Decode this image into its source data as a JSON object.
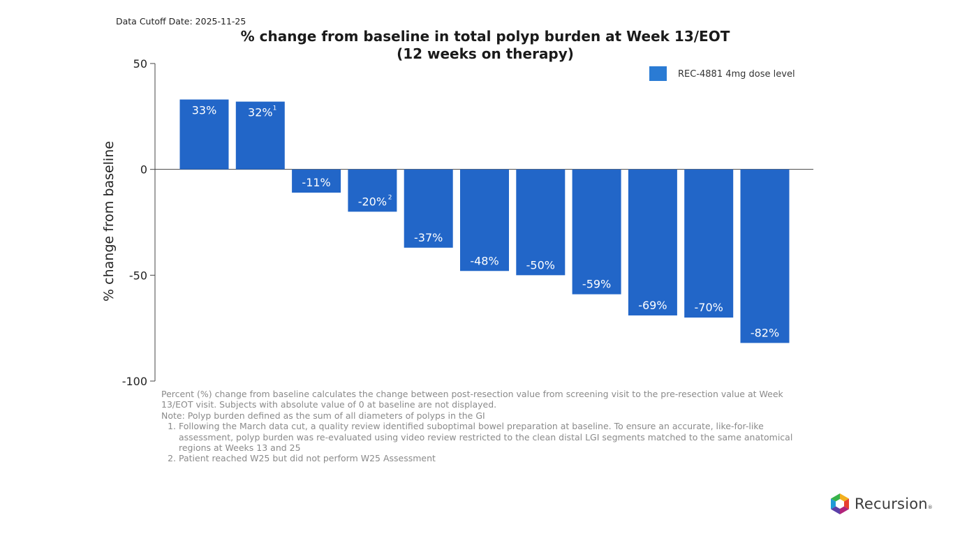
{
  "header": {
    "cutoff": "Data Cutoff Date: 2025-11-25"
  },
  "chart_data": {
    "type": "bar",
    "title_line1": "% change from baseline in total polyp burden at Week 13/EOT",
    "title_line2": "(12 weeks on therapy)",
    "ylabel": "% change from baseline",
    "xlabel": "",
    "ylim": [
      -100,
      50
    ],
    "yticks": [
      50,
      0,
      -50,
      -100
    ],
    "legend": {
      "label": "REC-4881 4mg dose level",
      "position": "top-right"
    },
    "bar_color": "#2266c8",
    "values": [
      33,
      32,
      -11,
      -20,
      -37,
      -48,
      -50,
      -59,
      -69,
      -70,
      -82
    ],
    "labels": [
      "33%",
      "32%",
      "-11%",
      "-20%",
      "-37%",
      "-48%",
      "-50%",
      "-59%",
      "-69%",
      "-70%",
      "-82%"
    ],
    "superscripts": [
      "",
      "1",
      "",
      "2",
      "",
      "",
      "",
      "",
      "",
      "",
      ""
    ]
  },
  "footnotes": {
    "para1": "Percent (%) change from baseline calculates the change between post-resection value from screening visit to the pre-resection value at Week 13/EOT visit. Subjects with absolute value of 0 at baseline are not displayed.",
    "para2": "Note: Polyp burden defined as the sum of all diameters of polyps in the GI",
    "items": [
      "Following the March data cut, a quality review identified suboptimal bowel preparation at baseline. To ensure an accurate, like-for-like assessment, polyp burden was re-evaluated using video review restricted to the clean distal LGI segments matched to the same anatomical regions at Weeks 13 and 25",
      "Patient reached W25 but did not perform W25 Assessment"
    ]
  },
  "logo": {
    "name": "Recursion",
    "mark": "®"
  }
}
